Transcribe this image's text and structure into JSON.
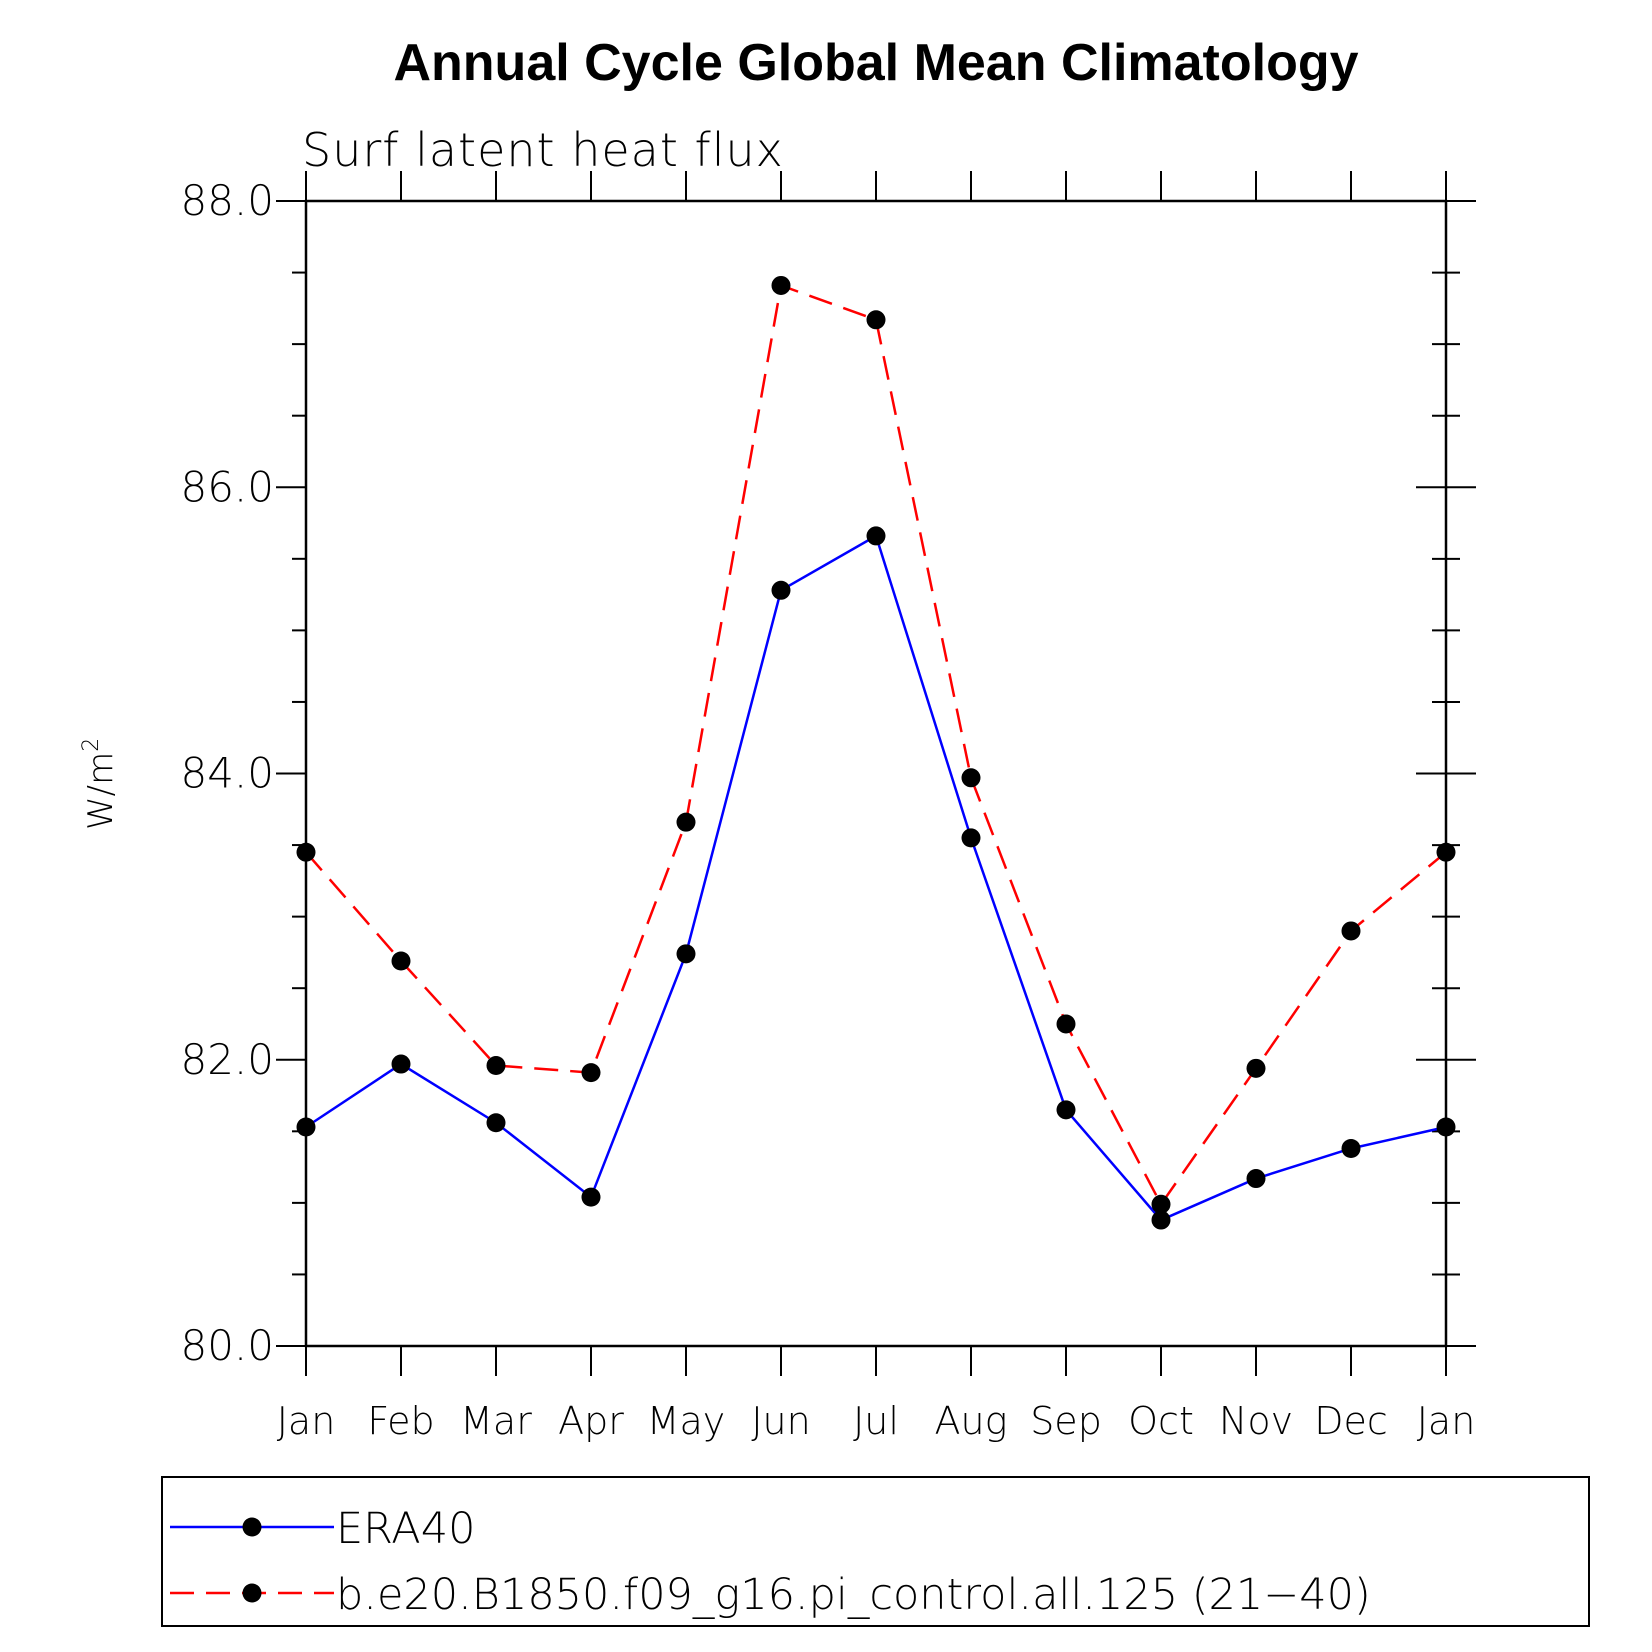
{
  "chart_data": {
    "type": "line",
    "title": "Annual Cycle Global Mean Climatology",
    "subtitle": "Surf latent heat flux",
    "ylabel": "W/m",
    "ylabel_superscript": "2",
    "xlabel": "",
    "categories": [
      "Jan",
      "Feb",
      "Mar",
      "Apr",
      "May",
      "Jun",
      "Jul",
      "Aug",
      "Sep",
      "Oct",
      "Nov",
      "Dec",
      "Jan"
    ],
    "ylim": [
      80.0,
      88.0
    ],
    "yticks": [
      "80.0",
      "82.0",
      "84.0",
      "86.0",
      "88.0"
    ],
    "grid": false,
    "legend_position": "bottom",
    "series": [
      {
        "name": "ERA40",
        "color": "#0000ff",
        "style": "solid",
        "marker": "filled-circle",
        "values": [
          81.53,
          81.97,
          81.56,
          81.04,
          82.74,
          85.28,
          85.66,
          83.55,
          81.65,
          80.88,
          81.17,
          81.38,
          81.53
        ]
      },
      {
        "name": "b.e20.B1850.f09_g16.pi_control.all.125 (21−40)",
        "color": "#ff0000",
        "style": "dashed",
        "marker": "filled-circle",
        "values": [
          83.45,
          82.69,
          81.96,
          81.91,
          83.66,
          87.41,
          87.17,
          83.97,
          82.25,
          80.99,
          81.94,
          82.9,
          83.45
        ]
      }
    ]
  }
}
